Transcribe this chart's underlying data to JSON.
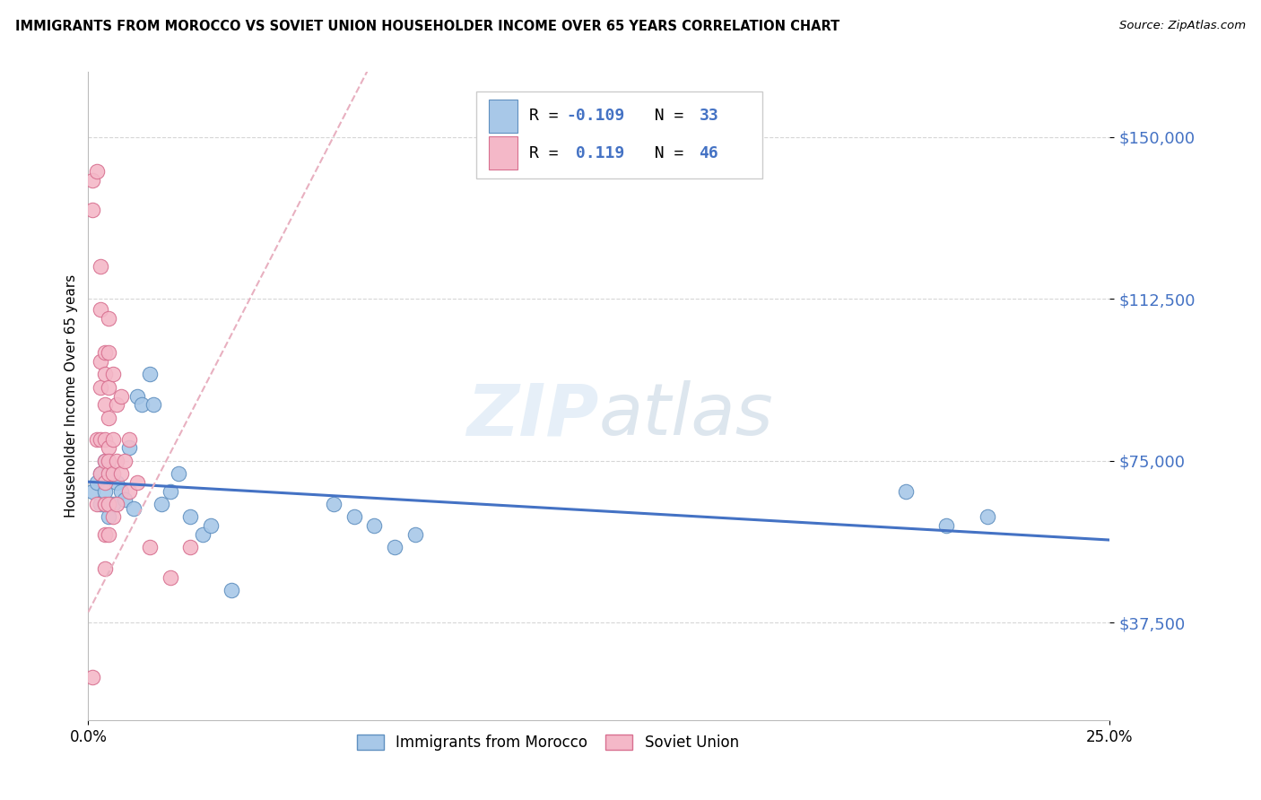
{
  "title": "IMMIGRANTS FROM MOROCCO VS SOVIET UNION HOUSEHOLDER INCOME OVER 65 YEARS CORRELATION CHART",
  "source": "Source: ZipAtlas.com",
  "ylabel": "Householder Income Over 65 years",
  "xlim": [
    0.0,
    0.25
  ],
  "ylim": [
    15000,
    165000
  ],
  "yticks": [
    37500,
    75000,
    112500,
    150000
  ],
  "ytick_labels": [
    "$37,500",
    "$75,000",
    "$112,500",
    "$150,000"
  ],
  "watermark": "ZIPatlas",
  "morocco_color": "#a8c8e8",
  "soviet_color": "#f4b8c8",
  "morocco_edge_color": "#6090c0",
  "soviet_edge_color": "#d87090",
  "morocco_line_color": "#4472c4",
  "soviet_line_color": "#e8b0c0",
  "morocco_points_x": [
    0.001,
    0.002,
    0.003,
    0.003,
    0.004,
    0.004,
    0.005,
    0.005,
    0.006,
    0.007,
    0.008,
    0.009,
    0.01,
    0.011,
    0.012,
    0.013,
    0.015,
    0.016,
    0.018,
    0.02,
    0.022,
    0.025,
    0.028,
    0.03,
    0.035,
    0.06,
    0.065,
    0.07,
    0.075,
    0.08,
    0.2,
    0.21,
    0.22
  ],
  "morocco_points_y": [
    68000,
    70000,
    72000,
    65000,
    75000,
    68000,
    62000,
    73000,
    65000,
    70000,
    68000,
    66000,
    78000,
    64000,
    90000,
    88000,
    95000,
    88000,
    65000,
    68000,
    72000,
    62000,
    58000,
    60000,
    45000,
    65000,
    62000,
    60000,
    55000,
    58000,
    68000,
    60000,
    62000
  ],
  "soviet_points_x": [
    0.001,
    0.001,
    0.001,
    0.002,
    0.002,
    0.002,
    0.003,
    0.003,
    0.003,
    0.003,
    0.003,
    0.003,
    0.004,
    0.004,
    0.004,
    0.004,
    0.004,
    0.004,
    0.004,
    0.004,
    0.004,
    0.005,
    0.005,
    0.005,
    0.005,
    0.005,
    0.005,
    0.005,
    0.005,
    0.005,
    0.006,
    0.006,
    0.006,
    0.006,
    0.007,
    0.007,
    0.007,
    0.008,
    0.008,
    0.009,
    0.01,
    0.01,
    0.012,
    0.015,
    0.02,
    0.025
  ],
  "soviet_points_y": [
    140000,
    133000,
    25000,
    142000,
    80000,
    65000,
    120000,
    110000,
    98000,
    92000,
    80000,
    72000,
    100000,
    95000,
    88000,
    80000,
    75000,
    70000,
    65000,
    58000,
    50000,
    108000,
    100000,
    92000,
    85000,
    78000,
    72000,
    65000,
    58000,
    75000,
    95000,
    80000,
    72000,
    62000,
    88000,
    75000,
    65000,
    90000,
    72000,
    75000,
    80000,
    68000,
    70000,
    55000,
    48000,
    55000
  ]
}
